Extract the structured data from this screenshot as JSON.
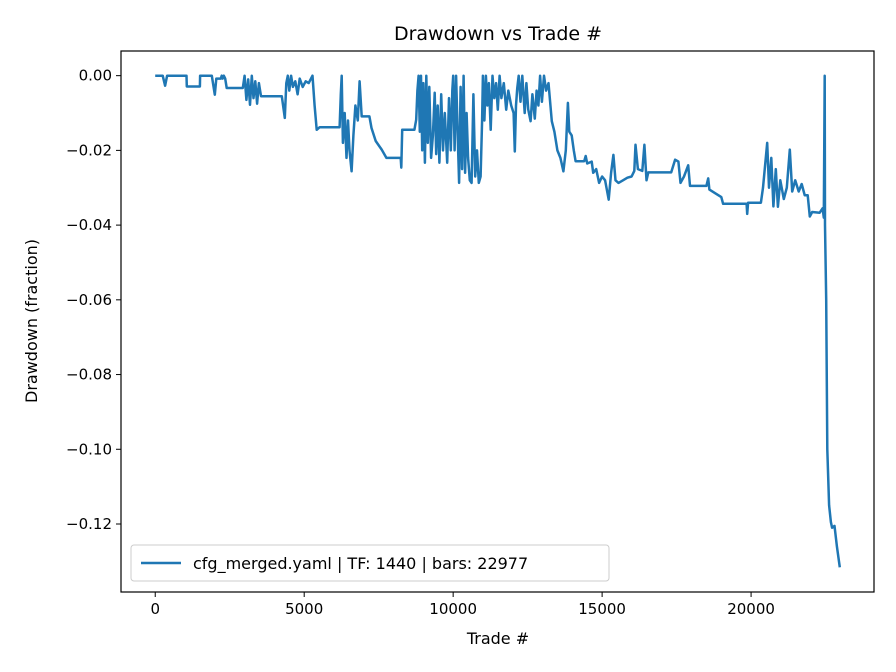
{
  "chart_data": {
    "type": "line",
    "title": "Drawdown vs Trade #",
    "xlabel": "Trade #",
    "ylabel": "Drawdown (fraction)",
    "xlim": [
      -1149,
      24126
    ],
    "ylim": [
      -0.1382,
      0.0066
    ],
    "xticks": [
      0,
      5000,
      10000,
      15000,
      20000
    ],
    "xtick_labels": [
      "0",
      "5000",
      "10000",
      "15000",
      "20000"
    ],
    "yticks": [
      0,
      -0.02,
      -0.04,
      -0.06,
      -0.08,
      -0.1,
      -0.12
    ],
    "ytick_labels": [
      "0.00",
      "−0.02",
      "−0.04",
      "−0.06",
      "−0.08",
      "−0.10",
      "−0.12"
    ],
    "grid": false,
    "legend_position": "lower-left",
    "series": [
      {
        "name": "cfg_merged.yaml | TF: 1440 | bars: 22977",
        "color": "#1f77b4",
        "points": [
          [
            0,
            0
          ],
          [
            250,
            0
          ],
          [
            330,
            -0.0027
          ],
          [
            400,
            0
          ],
          [
            1050,
            0
          ],
          [
            1060,
            -0.0029
          ],
          [
            1500,
            -0.0029
          ],
          [
            1505,
            0
          ],
          [
            1900,
            0
          ],
          [
            2000,
            -0.0051
          ],
          [
            2050,
            -0.0008
          ],
          [
            2200,
            -0.0008
          ],
          [
            2230,
            0
          ],
          [
            2260,
            -0.0008
          ],
          [
            2300,
            0
          ],
          [
            2350,
            -0.0008
          ],
          [
            2400,
            -0.0033
          ],
          [
            2940,
            -0.0033
          ],
          [
            3000,
            0
          ],
          [
            3060,
            -0.0065
          ],
          [
            3120,
            -0.001
          ],
          [
            3180,
            -0.0078
          ],
          [
            3240,
            0
          ],
          [
            3300,
            -0.006
          ],
          [
            3360,
            -0.0015
          ],
          [
            3420,
            -0.0075
          ],
          [
            3480,
            -0.002
          ],
          [
            3550,
            -0.0055
          ],
          [
            4250,
            -0.0055
          ],
          [
            4350,
            -0.0113
          ],
          [
            4400,
            -0.002
          ],
          [
            4450,
            0
          ],
          [
            4500,
            -0.004
          ],
          [
            4560,
            0
          ],
          [
            4620,
            -0.003
          ],
          [
            4700,
            -0.0015
          ],
          [
            4780,
            -0.005
          ],
          [
            4850,
            -0.0008
          ],
          [
            4950,
            -0.003
          ],
          [
            5050,
            -0.0015
          ],
          [
            5150,
            -0.002
          ],
          [
            5280,
            0
          ],
          [
            5350,
            -0.008
          ],
          [
            5420,
            -0.0145
          ],
          [
            5520,
            -0.0138
          ],
          [
            6190,
            -0.0138
          ],
          [
            6230,
            -0.005
          ],
          [
            6260,
            0
          ],
          [
            6300,
            -0.018
          ],
          [
            6360,
            -0.01
          ],
          [
            6420,
            -0.022
          ],
          [
            6470,
            -0.012
          ],
          [
            6520,
            -0.02
          ],
          [
            6590,
            -0.0256
          ],
          [
            6650,
            -0.016
          ],
          [
            6720,
            -0.008
          ],
          [
            6800,
            -0.012
          ],
          [
            6860,
            -0.0015
          ],
          [
            6930,
            -0.0109
          ],
          [
            7190,
            -0.0109
          ],
          [
            7260,
            -0.014
          ],
          [
            7400,
            -0.0175
          ],
          [
            7600,
            -0.0198
          ],
          [
            7760,
            -0.022
          ],
          [
            8240,
            -0.022
          ],
          [
            8260,
            -0.0246
          ],
          [
            8290,
            -0.0145
          ],
          [
            8700,
            -0.0145
          ],
          [
            8760,
            -0.0118
          ],
          [
            8800,
            -0.004
          ],
          [
            8840,
            0
          ],
          [
            8880,
            -0.015
          ],
          [
            8920,
            0
          ],
          [
            8960,
            -0.02
          ],
          [
            9000,
            -0.002
          ],
          [
            9050,
            -0.0233
          ],
          [
            9100,
            0
          ],
          [
            9150,
            -0.018
          ],
          [
            9200,
            -0.003
          ],
          [
            9260,
            -0.022
          ],
          [
            9320,
            -0.016
          ],
          [
            9380,
            -0.0046
          ],
          [
            9430,
            -0.021
          ],
          [
            9480,
            -0.008
          ],
          [
            9540,
            -0.0233
          ],
          [
            9600,
            -0.005
          ],
          [
            9660,
            -0.02
          ],
          [
            9720,
            -0.01
          ],
          [
            9800,
            -0.0233
          ],
          [
            9860,
            -0.006
          ],
          [
            9920,
            -0.02
          ],
          [
            9970,
            -0.004
          ],
          [
            10000,
            0
          ],
          [
            10050,
            -0.02
          ],
          [
            10100,
            0
          ],
          [
            10150,
            -0.015
          ],
          [
            10200,
            -0.0287
          ],
          [
            10250,
            -0.003
          ],
          [
            10300,
            -0.025
          ],
          [
            10350,
            0
          ],
          [
            10400,
            -0.026
          ],
          [
            10450,
            -0.01
          ],
          [
            10500,
            -0.022
          ],
          [
            10560,
            -0.028
          ],
          [
            10620,
            -0.0287
          ],
          [
            10680,
            -0.005
          ],
          [
            10740,
            -0.027
          ],
          [
            10800,
            -0.02
          ],
          [
            10860,
            -0.0287
          ],
          [
            10920,
            -0.027
          ],
          [
            10970,
            -0.012
          ],
          [
            11000,
            0
          ],
          [
            11050,
            -0.012
          ],
          [
            11100,
            0
          ],
          [
            11150,
            -0.008
          ],
          [
            11200,
            -0.002
          ],
          [
            11260,
            -0.0145
          ],
          [
            11320,
            0
          ],
          [
            11380,
            -0.006
          ],
          [
            11440,
            -0.002
          ],
          [
            11500,
            -0.0091
          ],
          [
            11560,
            0
          ],
          [
            11620,
            -0.006
          ],
          [
            11700,
            -0.002
          ],
          [
            11780,
            -0.0091
          ],
          [
            11850,
            -0.004
          ],
          [
            11950,
            -0.008
          ],
          [
            12030,
            -0.01
          ],
          [
            12070,
            -0.0203
          ],
          [
            12110,
            -0.008
          ],
          [
            12150,
            -0.0035
          ],
          [
            12200,
            0
          ],
          [
            12260,
            -0.007
          ],
          [
            12320,
            0
          ],
          [
            12400,
            -0.01
          ],
          [
            12460,
            -0.002
          ],
          [
            12520,
            -0.009
          ],
          [
            12600,
            -0.0122
          ],
          [
            12660,
            -0.005
          ],
          [
            12740,
            -0.0115
          ],
          [
            12800,
            -0.004
          ],
          [
            12860,
            -0.008
          ],
          [
            12920,
            0
          ],
          [
            12980,
            -0.007
          ],
          [
            13050,
            0
          ],
          [
            13120,
            -0.004
          ],
          [
            13200,
            -0.002
          ],
          [
            13310,
            -0.0122
          ],
          [
            13400,
            -0.015
          ],
          [
            13500,
            -0.02
          ],
          [
            13600,
            -0.022
          ],
          [
            13700,
            -0.0256
          ],
          [
            13780,
            -0.02
          ],
          [
            13850,
            -0.0073
          ],
          [
            13900,
            -0.015
          ],
          [
            13980,
            -0.016
          ],
          [
            14050,
            -0.02
          ],
          [
            14110,
            -0.0229
          ],
          [
            14400,
            -0.0229
          ],
          [
            14450,
            -0.0215
          ],
          [
            14500,
            -0.0235
          ],
          [
            14650,
            -0.023
          ],
          [
            14700,
            -0.026
          ],
          [
            14800,
            -0.025
          ],
          [
            14900,
            -0.0287
          ],
          [
            15000,
            -0.027
          ],
          [
            15100,
            -0.028
          ],
          [
            15220,
            -0.0332
          ],
          [
            15300,
            -0.026
          ],
          [
            15380,
            -0.0212
          ],
          [
            15450,
            -0.028
          ],
          [
            15550,
            -0.0287
          ],
          [
            15700,
            -0.028
          ],
          [
            15850,
            -0.0273
          ],
          [
            15990,
            -0.027
          ],
          [
            16080,
            -0.0255
          ],
          [
            16120,
            -0.0185
          ],
          [
            16200,
            -0.025
          ],
          [
            16350,
            -0.0255
          ],
          [
            16420,
            -0.0185
          ],
          [
            16490,
            -0.028
          ],
          [
            16550,
            -0.0259
          ],
          [
            17320,
            -0.0259
          ],
          [
            17450,
            -0.0225
          ],
          [
            17560,
            -0.023
          ],
          [
            17630,
            -0.0287
          ],
          [
            17750,
            -0.027
          ],
          [
            17890,
            -0.024
          ],
          [
            17950,
            -0.0295
          ],
          [
            18500,
            -0.0295
          ],
          [
            18560,
            -0.0275
          ],
          [
            18600,
            -0.0305
          ],
          [
            18800,
            -0.0315
          ],
          [
            19000,
            -0.0325
          ],
          [
            19060,
            -0.0343
          ],
          [
            19850,
            -0.0343
          ],
          [
            19870,
            -0.037
          ],
          [
            19900,
            -0.034
          ],
          [
            20330,
            -0.034
          ],
          [
            20400,
            -0.03
          ],
          [
            20540,
            -0.018
          ],
          [
            20600,
            -0.03
          ],
          [
            20680,
            -0.022
          ],
          [
            20750,
            -0.035
          ],
          [
            20830,
            -0.025
          ],
          [
            20900,
            -0.0351
          ],
          [
            20980,
            -0.028
          ],
          [
            21100,
            -0.033
          ],
          [
            21200,
            -0.03
          ],
          [
            21300,
            -0.0198
          ],
          [
            21380,
            -0.031
          ],
          [
            21480,
            -0.028
          ],
          [
            21600,
            -0.031
          ],
          [
            21700,
            -0.029
          ],
          [
            21800,
            -0.032
          ],
          [
            21900,
            -0.032
          ],
          [
            21970,
            -0.0377
          ],
          [
            22050,
            -0.0365
          ],
          [
            22300,
            -0.0367
          ],
          [
            22400,
            -0.0355
          ],
          [
            22440,
            -0.038
          ],
          [
            22470,
            0
          ],
          [
            22480,
            -0.04
          ],
          [
            22520,
            -0.06
          ],
          [
            22560,
            -0.1
          ],
          [
            22620,
            -0.115
          ],
          [
            22680,
            -0.1195
          ],
          [
            22720,
            -0.121
          ],
          [
            22800,
            -0.1205
          ],
          [
            22880,
            -0.126
          ],
          [
            22977,
            -0.1316
          ]
        ]
      }
    ]
  }
}
